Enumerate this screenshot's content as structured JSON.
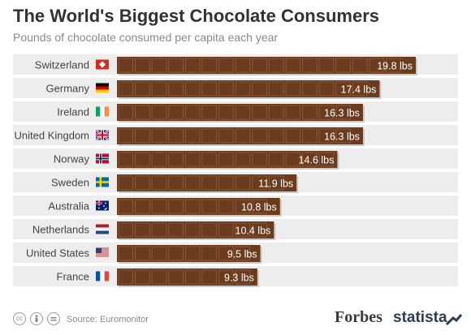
{
  "header": {
    "title": "The World's Biggest Chocolate Consumers",
    "subtitle": "Pounds of chocolate consumed per capita each year"
  },
  "chart_data": {
    "type": "bar",
    "orientation": "horizontal",
    "title": "The World's Biggest Chocolate Consumers",
    "subtitle": "Pounds of chocolate consumed per capita each year",
    "xlim": [
      0,
      19.8
    ],
    "unit": "lbs",
    "grid": false,
    "categories": [
      "Switzerland",
      "Germany",
      "Ireland",
      "United Kingdom",
      "Norway",
      "Sweden",
      "Australia",
      "Netherlands",
      "United States",
      "France"
    ],
    "values": [
      19.8,
      17.4,
      16.3,
      16.3,
      14.6,
      11.9,
      10.8,
      10.4,
      9.5,
      9.3
    ],
    "value_labels": [
      "19.8 lbs",
      "17.4 lbs",
      "16.3 lbs",
      "16.3 lbs",
      "14.6 lbs",
      "11.9 lbs",
      "10.8 lbs",
      "10.4 lbs",
      "9.5 lbs",
      "9.3 lbs"
    ],
    "flag_icons": [
      "flag-switzerland-icon",
      "flag-germany-icon",
      "flag-ireland-icon",
      "flag-united-kingdom-icon",
      "flag-norway-icon",
      "flag-sweden-icon",
      "flag-australia-icon",
      "flag-netherlands-icon",
      "flag-united-states-icon",
      "flag-france-icon"
    ],
    "colors": {
      "bar": "#6b3b1e",
      "bar_piece": "#87573a",
      "row_background": "#ededed"
    }
  },
  "footer": {
    "source": "Source: Euromonitor",
    "license_icons": [
      "cc-icon",
      "attribution-icon",
      "no-derivatives-icon"
    ],
    "brand_forbes": "Forbes",
    "brand_statista": "statista"
  }
}
